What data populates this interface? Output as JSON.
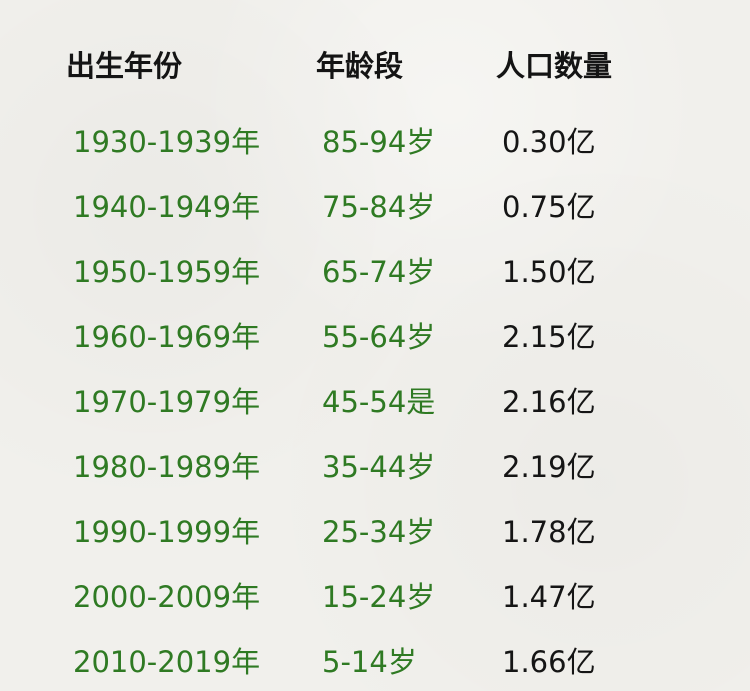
{
  "table": {
    "headers": {
      "birth_years": "出生年份",
      "age_range": "年龄段",
      "population": "人口数量"
    },
    "rows": [
      {
        "birth_years": "1930-1939年",
        "age_range": "85-94岁",
        "population": "0.30亿"
      },
      {
        "birth_years": "1940-1949年",
        "age_range": "75-84岁",
        "population": "0.75亿"
      },
      {
        "birth_years": "1950-1959年",
        "age_range": "65-74岁",
        "population": "1.50亿"
      },
      {
        "birth_years": "1960-1969年",
        "age_range": "55-64岁",
        "population": "2.15亿"
      },
      {
        "birth_years": "1970-1979年",
        "age_range": "45-54是",
        "population": "2.16亿"
      },
      {
        "birth_years": "1980-1989年",
        "age_range": "35-44岁",
        "population": "2.19亿"
      },
      {
        "birth_years": "1990-1999年",
        "age_range": "25-34岁",
        "population": "1.78亿"
      },
      {
        "birth_years": "2000-2009年",
        "age_range": "15-24岁",
        "population": "1.47亿"
      },
      {
        "birth_years": "2010-2019年",
        "age_range": "5-14岁",
        "population": "1.66亿"
      }
    ]
  },
  "colors": {
    "background": "#f1f0ec",
    "green_text": "#2f7a23",
    "dark_text": "#151515"
  }
}
